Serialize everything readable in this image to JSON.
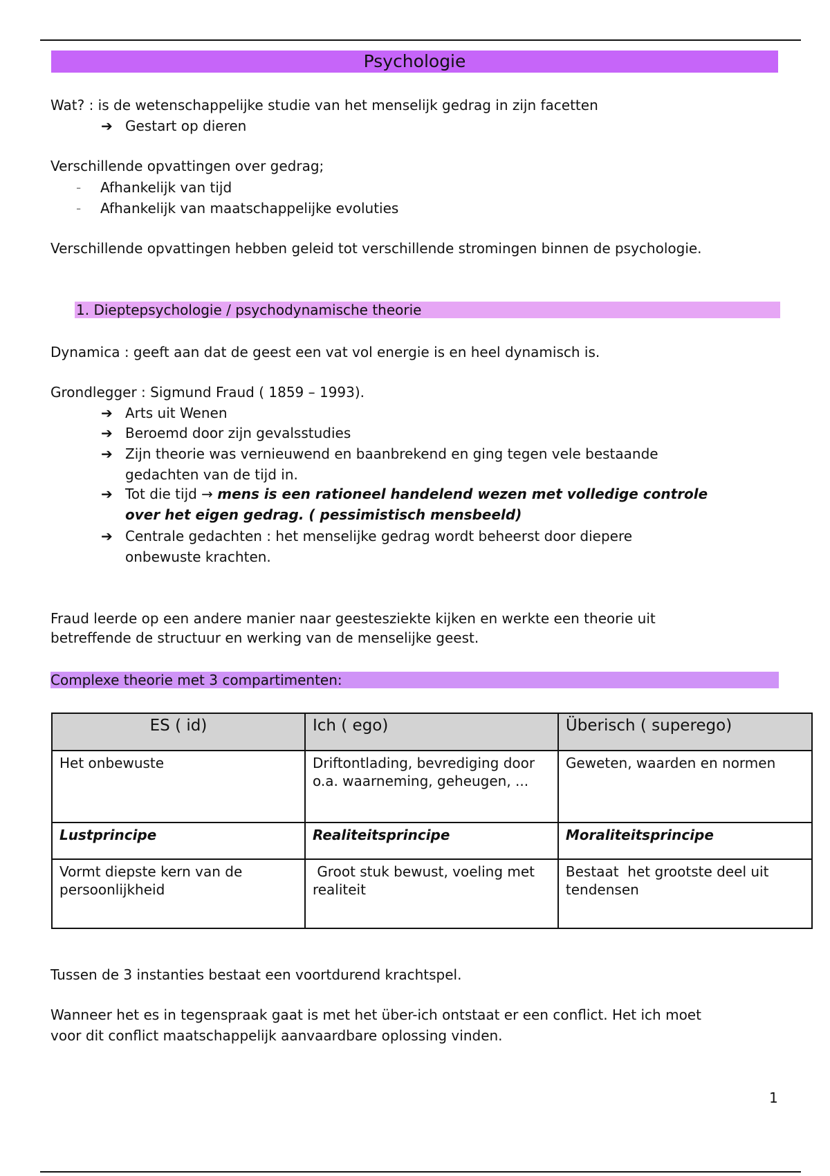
{
  "title": "Psychologie",
  "intro": {
    "what": "Wat? : is de wetenschappelijke studie van het menselijk gedrag in zijn facetten",
    "arrow_item": "Gestart op dieren",
    "views_heading": "Verschillende opvattingen over gedrag;",
    "views": [
      "Afhankelijk van tijd",
      "Afhankelijk van maatschappelijke evoluties"
    ],
    "conclusion": "Verschillende opvattingen hebben geleid tot verschillende stromingen binnen de psychologie."
  },
  "section1": {
    "heading": "1.  Dieptepsychologie  / psychodynamische theorie",
    "dynamica": "Dynamica : geeft aan dat de geest een vat vol energie is en heel dynamisch is.",
    "founder": "Grondlegger : Sigmund Fraud ( 1859 – 1993).",
    "points": [
      {
        "lines": [
          "Arts uit Wenen"
        ]
      },
      {
        "lines": [
          "Beroemd door zijn gevalsstudies"
        ]
      },
      {
        "lines": [
          "Zijn theorie was vernieuwend en baanbrekend en ging tegen vele bestaande",
          "gedachten van de tijd in."
        ]
      },
      {
        "prefix": "Tot die tijd → ",
        "bold_lines": [
          "mens is een rationeel handelend wezen met volledige controle",
          "over het eigen gedrag. ( pessimistisch mensbeeld)"
        ]
      },
      {
        "lines": [
          "Centrale gedachten :  het menselijke gedrag wordt beheerst door diepere",
          "onbewuste krachten."
        ]
      }
    ],
    "fraud_para": [
      "Fraud leerde op een andere manier naar geestesziekte kijken en werkte een theorie uit",
      "betreffende de structuur en werking van de menselijke geest."
    ],
    "complex_heading": "Complexe theorie met 3 compartimenten:"
  },
  "table": {
    "headers": [
      "ES ( id)",
      "Ich ( ego)",
      "Überisch ( superego)"
    ],
    "row1": [
      "Het onbewuste",
      "Driftontlading, bevrediging door o.a. waarneming, geheugen, ...",
      "Geweten, waarden en normen"
    ],
    "row2": [
      "Lustprincipe",
      "Realiteitsprincipe",
      "Moraliteitsprincipe"
    ],
    "row3": [
      "Vormt diepste kern van de persoonlijkheid",
      " Groot stuk bewust, voeling met realiteit",
      "Bestaat  het grootste deel uit tendensen"
    ]
  },
  "after_table": {
    "p1": "Tussen de 3 instanties bestaat een voortdurend krachtspel.",
    "p2": [
      "Wanneer het es in tegenspraak gaat is met het über-ich ontstaat er een conflict.  Het ich moet",
      "voor dit conflict maatschappelijk aanvaardbare oplossing vinden."
    ]
  },
  "page_number": "1",
  "colors": {
    "title_bar": "#c665f9",
    "section_bar": "#e6a6f5",
    "complex_bar": "#cf93f7",
    "table_header": "#d3d3d3"
  }
}
